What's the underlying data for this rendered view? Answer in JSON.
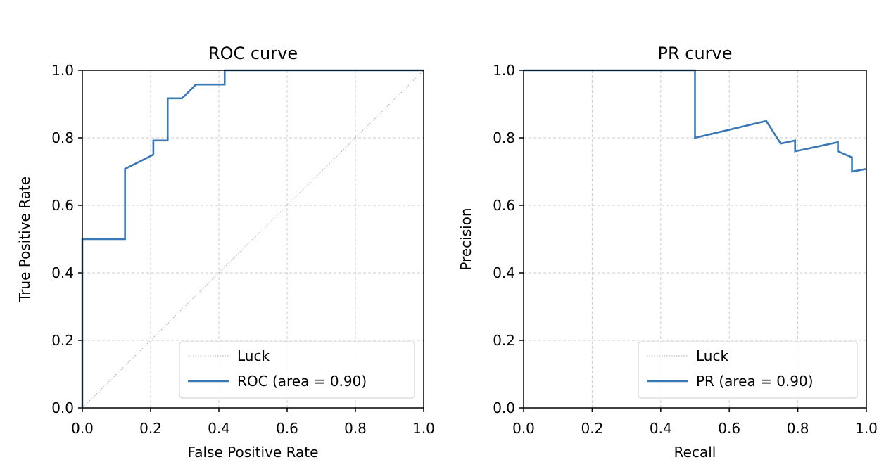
{
  "chart_data": [
    {
      "type": "line",
      "title": "ROC curve",
      "xlabel": "False Positive Rate",
      "ylabel": "True Positive Rate",
      "xlim": [
        0,
        1
      ],
      "ylim": [
        0,
        1
      ],
      "grid": true,
      "xticks": [
        "0.0",
        "0.2",
        "0.4",
        "0.6",
        "0.8",
        "1.0"
      ],
      "yticks": [
        "0.0",
        "0.2",
        "0.4",
        "0.6",
        "0.8",
        "1.0"
      ],
      "legend_position": "lower-right",
      "series": [
        {
          "name": "Luck",
          "style": "dotted",
          "color": "#aaaaaa",
          "x": [
            0,
            1
          ],
          "y": [
            0,
            1
          ]
        },
        {
          "name": "ROC (area = 0.90)",
          "style": "solid",
          "color": "#3a78b5",
          "x": [
            0,
            0,
            0.125,
            0.125,
            0.208,
            0.208,
            0.25,
            0.25,
            0.292,
            0.333,
            0.417,
            0.417,
            1.0
          ],
          "y": [
            0,
            0.5,
            0.5,
            0.708,
            0.75,
            0.792,
            0.792,
            0.917,
            0.917,
            0.958,
            0.958,
            1.0,
            1.0
          ]
        }
      ]
    },
    {
      "type": "line",
      "title": "PR curve",
      "xlabel": "Recall",
      "ylabel": "Precision",
      "xlim": [
        0,
        1
      ],
      "ylim": [
        0,
        1
      ],
      "grid": true,
      "xticks": [
        "0.0",
        "0.2",
        "0.4",
        "0.6",
        "0.8",
        "1.0"
      ],
      "yticks": [
        "0.0",
        "0.2",
        "0.4",
        "0.6",
        "0.8",
        "1.0"
      ],
      "legend_position": "lower-right",
      "series": [
        {
          "name": "Luck",
          "style": "dotted",
          "color": "#aaaaaa",
          "x": [],
          "y": []
        },
        {
          "name": "PR (area = 0.90)",
          "style": "solid",
          "color": "#3a78b5",
          "x": [
            0,
            0.5,
            0.5,
            0.708,
            0.75,
            0.792,
            0.792,
            0.917,
            0.917,
            0.958,
            0.958,
            1.0
          ],
          "y": [
            1.0,
            1.0,
            0.8,
            0.85,
            0.783,
            0.792,
            0.76,
            0.787,
            0.76,
            0.742,
            0.7,
            0.708
          ]
        }
      ]
    }
  ]
}
